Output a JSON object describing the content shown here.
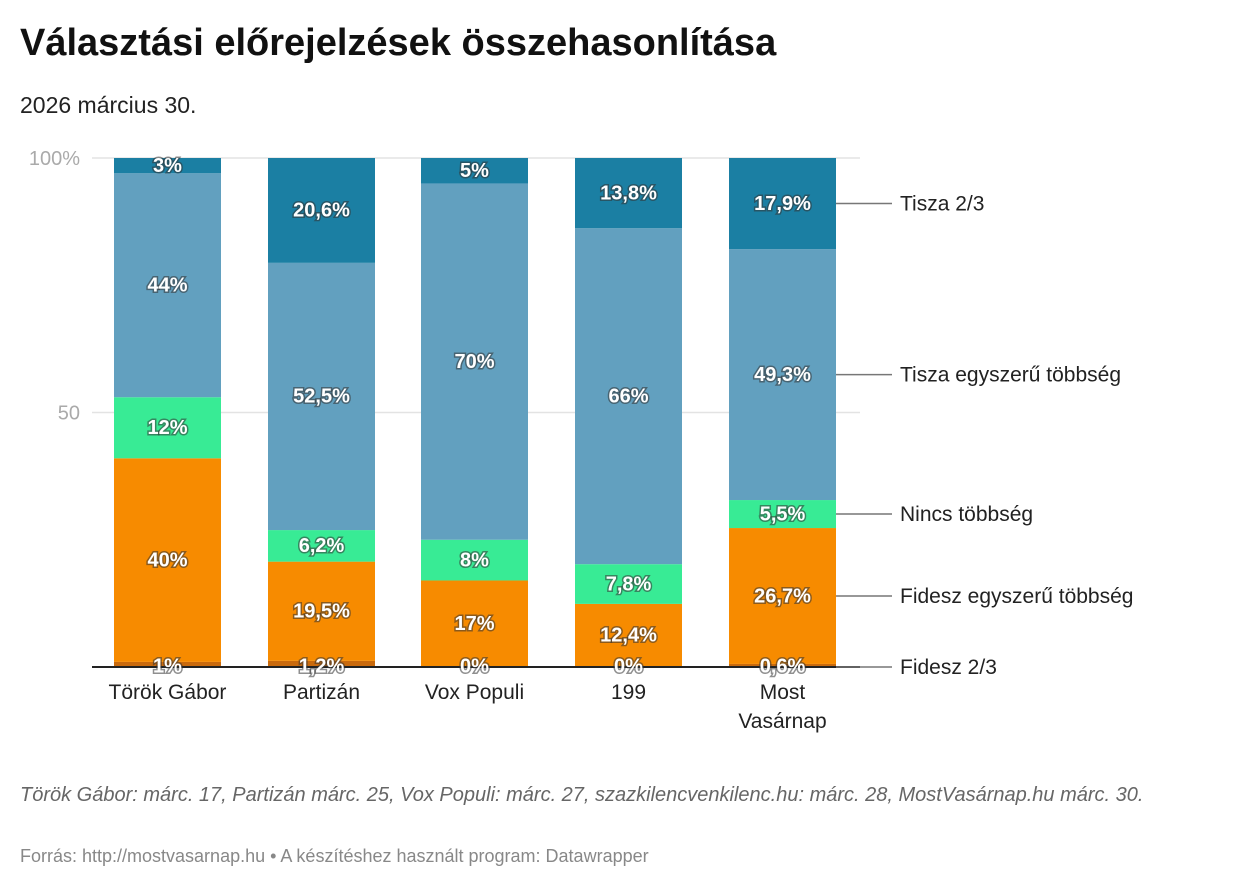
{
  "title": "Választási előrejelzések összehasonlítása",
  "subtitle": "2026 március 30.",
  "notes": "Török Gábor: márc. 17, Partizán márc. 25, Vox Populi: márc. 27, szazkilencvenkilenc.hu: márc. 28, MostVasárnap.hu márc. 30.",
  "source": "Forrás: http://mostvasarnap.hu • A készítéshez használt program: Datawrapper",
  "chart_data": {
    "type": "bar",
    "stacked": true,
    "categories": [
      [
        "Török Gábor"
      ],
      [
        "Partizán"
      ],
      [
        "Vox Populi"
      ],
      [
        "199"
      ],
      [
        "Most",
        "Vasárnap"
      ]
    ],
    "ylim": [
      0,
      100
    ],
    "yticks": [
      {
        "v": 0,
        "label": ""
      },
      {
        "v": 50,
        "label": "50"
      },
      {
        "v": 100,
        "label": "100%"
      }
    ],
    "grid": true,
    "legend": "right (direct labels)",
    "series": [
      {
        "name": "Fidesz 2/3",
        "color": "#c96a0d",
        "values": [
          1,
          1.2,
          0,
          0,
          0.6
        ],
        "labels": [
          "1%",
          "1,2%",
          "0%",
          "0%",
          "0,6%"
        ]
      },
      {
        "name": "Fidesz egyszerű többség",
        "color": "#f78b00",
        "values": [
          40,
          19.5,
          17,
          12.4,
          26.7
        ],
        "labels": [
          "40%",
          "19,5%",
          "17%",
          "12,4%",
          "26,7%"
        ]
      },
      {
        "name": "Nincs többség",
        "color": "#38eb95",
        "values": [
          12,
          6.2,
          8,
          7.8,
          5.5
        ],
        "labels": [
          "12%",
          "6,2%",
          "8%",
          "7,8%",
          "5,5%"
        ]
      },
      {
        "name": "Tisza egyszerű többség",
        "color": "#62a0bf",
        "values": [
          44,
          52.5,
          70,
          66,
          49.3
        ],
        "labels": [
          "44%",
          "52,5%",
          "70%",
          "66%",
          "49,3%"
        ]
      },
      {
        "name": "Tisza 2/3",
        "color": "#1b7fa3",
        "values": [
          3,
          20.6,
          5,
          13.8,
          17.9
        ],
        "labels": [
          "3%",
          "20,6%",
          "5%",
          "13,8%",
          "17,9%"
        ]
      }
    ]
  }
}
